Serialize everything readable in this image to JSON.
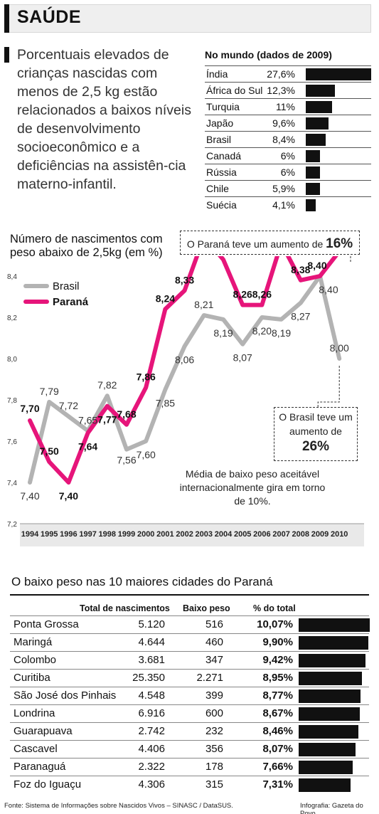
{
  "header": {
    "title": "SAÚDE"
  },
  "intro": "Porcentuais elevados de crianças nascidas com menos de 2,5 kg estão relacionados a baixos níveis de desenvolvimento socioeconômico e a deficiências na assistên-cia materno-infantil.",
  "world": {
    "title": "No mundo (dados de 2009)",
    "rows": [
      {
        "country": "Índia",
        "value": "27,6%",
        "pct": 27.6
      },
      {
        "country": "África do Sul",
        "value": "12,3%",
        "pct": 12.3
      },
      {
        "country": "Turquia",
        "value": "11%",
        "pct": 11
      },
      {
        "country": "Japão",
        "value": "9,6%",
        "pct": 9.6
      },
      {
        "country": "Brasil",
        "value": "8,4%",
        "pct": 8.4
      },
      {
        "country": "Canadá",
        "value": "6%",
        "pct": 6
      },
      {
        "country": "Rússia",
        "value": "6%",
        "pct": 6
      },
      {
        "country": "Chile",
        "value": "5,9%",
        "pct": 5.9
      },
      {
        "country": "Suécia",
        "value": "4,1%",
        "pct": 4.1
      }
    ]
  },
  "chart_data": {
    "type": "line",
    "title": "Número de nascimentos com peso abaixo de 2,5kg (em %)",
    "x": [
      "1994",
      "1995",
      "1996",
      "1997",
      "1998",
      "1999",
      "2000",
      "2001",
      "2002",
      "2003",
      "2004",
      "2005",
      "2006",
      "2007",
      "2008",
      "2009",
      "2010"
    ],
    "ylim": [
      7.2,
      8.4
    ],
    "yticks": [
      "7,2",
      "7,4",
      "7,6",
      "7,8",
      "8,0",
      "8,2",
      "8,4"
    ],
    "legend_position": "top-left",
    "series": [
      {
        "name": "Brasil",
        "color": "#b3b3b3",
        "values": [
          7.4,
          7.79,
          7.72,
          7.65,
          7.82,
          7.56,
          7.6,
          7.85,
          8.06,
          8.21,
          8.19,
          8.07,
          8.2,
          8.19,
          8.27,
          8.4,
          8.0
        ],
        "labels": [
          "7,40",
          "7,79",
          "7,72",
          "7,65",
          "7,82",
          "7,56",
          "7,60",
          "7,85",
          "8,06",
          "8,21",
          "8,19",
          "8,07",
          "8,20",
          "8,19",
          "8,27",
          "8,40",
          "8,00"
        ]
      },
      {
        "name": "Paraná",
        "color": "#e6157a",
        "values": [
          7.7,
          7.5,
          7.4,
          7.64,
          7.77,
          7.68,
          7.86,
          8.24,
          8.33,
          8.59,
          8.48,
          8.26,
          8.26,
          8.56,
          8.38,
          8.4,
          8.52
        ],
        "labels": [
          "7,70",
          "7,50",
          "7,40",
          "7,64",
          "7,77",
          "7,68",
          "7,86",
          "8,24",
          "8,33",
          "8,59",
          "8,48",
          "8,26",
          "8,26",
          "8,56",
          "8,38",
          "8,40",
          "8,52"
        ]
      }
    ],
    "annotations": {
      "parana_text": "O Paraná teve um aumento de",
      "parana_value": "16%",
      "brasil_text": "O Brasil teve um aumento de",
      "brasil_value": "26%",
      "note": "Média de baixo peso aceitável internacionalmente gira em torno de 10%."
    }
  },
  "cities": {
    "title": "O baixo peso nas 10 maiores cidades do Paraná",
    "headers": {
      "total": "Total de nascimentos",
      "low": "Baixo peso",
      "pct": "% do total"
    },
    "rows": [
      {
        "city": "Ponta Grossa",
        "total": "5.120",
        "low": "516",
        "pct_label": "10,07%",
        "pct": 10.07
      },
      {
        "city": "Maringá",
        "total": "4.644",
        "low": "460",
        "pct_label": "9,90%",
        "pct": 9.9
      },
      {
        "city": "Colombo",
        "total": "3.681",
        "low": "347",
        "pct_label": "9,42%",
        "pct": 9.42
      },
      {
        "city": "Curitiba",
        "total": "25.350",
        "low": "2.271",
        "pct_label": "8,95%",
        "pct": 8.95
      },
      {
        "city": "São José dos Pinhais",
        "total": "4.548",
        "low": "399",
        "pct_label": "8,77%",
        "pct": 8.77
      },
      {
        "city": "Londrina",
        "total": "6.916",
        "low": "600",
        "pct_label": "8,67%",
        "pct": 8.67
      },
      {
        "city": "Guarapuava",
        "total": "2.742",
        "low": "232",
        "pct_label": "8,46%",
        "pct": 8.46
      },
      {
        "city": "Cascavel",
        "total": "4.406",
        "low": "356",
        "pct_label": "8,07%",
        "pct": 8.07
      },
      {
        "city": "Paranaguá",
        "total": "2.322",
        "low": "178",
        "pct_label": "7,66%",
        "pct": 7.66
      },
      {
        "city": "Foz do Iguaçu",
        "total": "4.306",
        "low": "315",
        "pct_label": "7,31%",
        "pct": 7.31
      }
    ]
  },
  "footer": {
    "source": "Fonte: Sistema de Informações sobre Nascidos Vivos – SINASC / DataSUS.",
    "credit": "Infografia: Gazeta do Povo"
  }
}
